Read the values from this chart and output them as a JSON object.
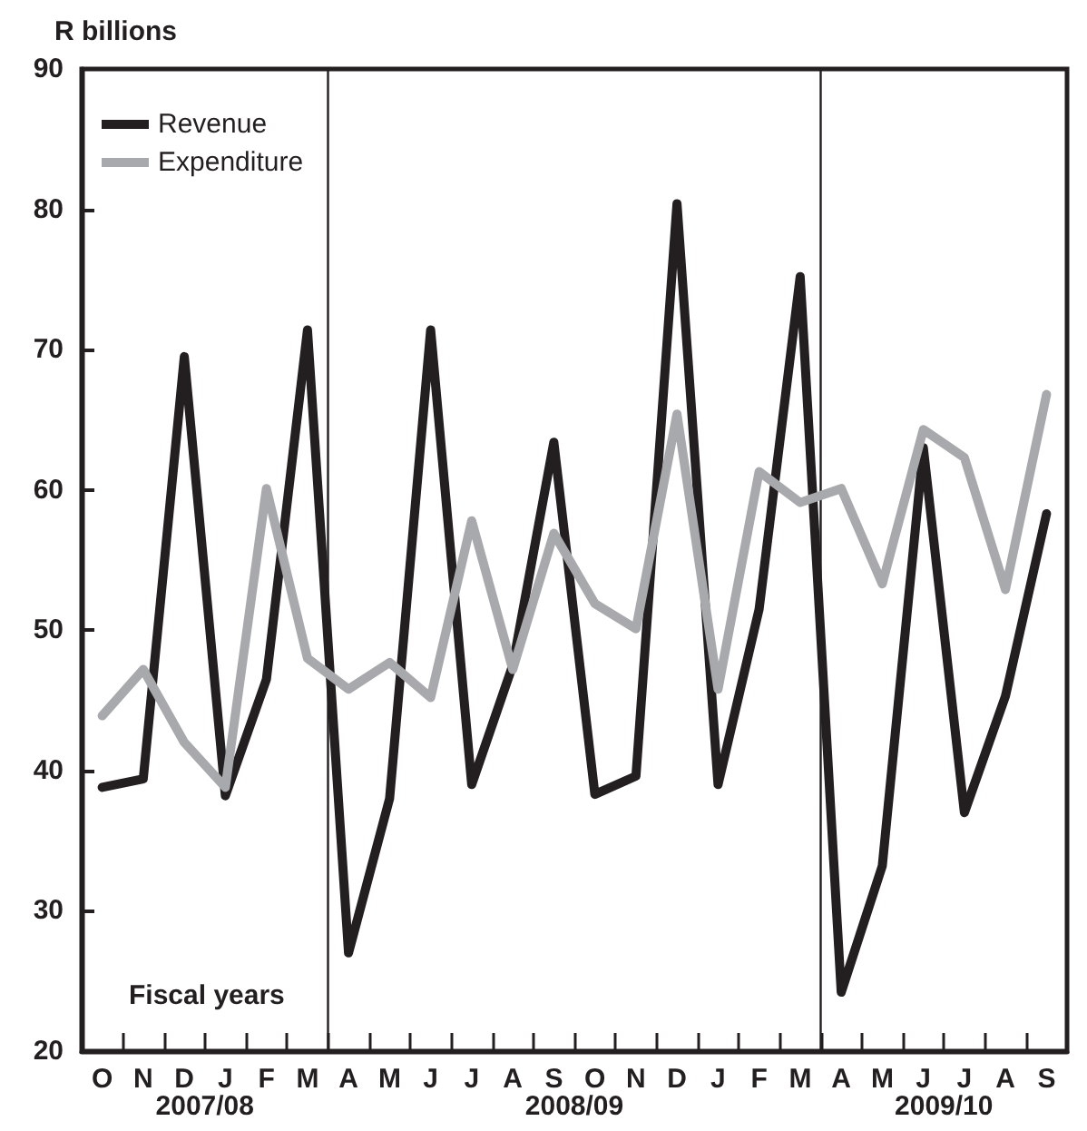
{
  "chart_data": {
    "type": "line",
    "ylabel": "R billions",
    "categories": [
      "O",
      "N",
      "D",
      "J",
      "F",
      "M",
      "A",
      "M",
      "J",
      "J",
      "A",
      "S",
      "O",
      "N",
      "D",
      "J",
      "F",
      "M",
      "A",
      "M",
      "J",
      "J",
      "A",
      "S"
    ],
    "series": [
      {
        "name": "Revenue",
        "color": "#231f20",
        "values": [
          38.8,
          39.4,
          69.5,
          38.2,
          46.5,
          71.4,
          27,
          38,
          71.4,
          39,
          47.5,
          63.4,
          38.3,
          39.6,
          80.4,
          39,
          51.5,
          75.2,
          24.2,
          33.2,
          63,
          37,
          45.3,
          58.3
        ]
      },
      {
        "name": "Expenditure",
        "color": "#a7a9ac",
        "values": [
          43.9,
          47.2,
          42,
          38.8,
          60.1,
          48,
          45.8,
          47.7,
          45.2,
          57.8,
          47.2,
          56.9,
          51.9,
          50.1,
          65.4,
          45.8,
          61.3,
          59.1,
          60.1,
          53.3,
          64.3,
          62.3,
          52.9,
          66.8
        ]
      }
    ],
    "ylim": [
      20,
      90
    ],
    "yticks": [
      20,
      30,
      40,
      50,
      60,
      70,
      80,
      90
    ],
    "grid": false,
    "legend": "top left",
    "marker": "none",
    "line_style": "solid",
    "annotations": [
      "Fiscal years",
      "2007/08",
      "2008/09",
      "2009/10"
    ]
  }
}
